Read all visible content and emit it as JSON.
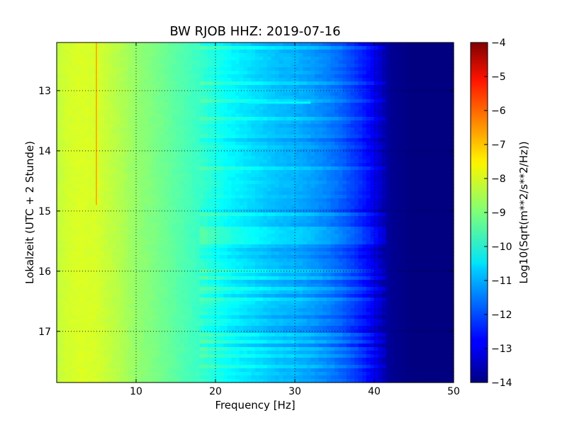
{
  "chart_data": {
    "type": "heatmap",
    "title": "BW RJOB HHZ: 2019-07-16",
    "xlabel": "Frequency [Hz]",
    "ylabel": "Lokalzeit (UTC + 2 Stunde)",
    "xlim": [
      0,
      50
    ],
    "ylim": [
      12.2,
      17.85
    ],
    "y_inverted": true,
    "x_ticks": [
      10,
      20,
      30,
      40,
      50
    ],
    "y_ticks": [
      13,
      14,
      15,
      16,
      17
    ],
    "grid": true,
    "colormap": "jet",
    "colorbar": {
      "label": "Log10(Sqrt(m**2/s**2/Hz))",
      "range": [
        -14,
        -4
      ],
      "ticks": [
        -14,
        -13,
        -12,
        -11,
        -10,
        -9,
        -8,
        -7,
        -6,
        -5,
        -4
      ]
    },
    "spectrum_profile": {
      "frequency_hz": [
        0,
        1,
        3,
        5,
        8,
        10,
        12,
        15,
        18,
        20,
        22,
        25,
        28,
        30,
        32,
        34,
        36,
        38,
        40,
        41,
        42,
        45,
        50
      ],
      "log_amplitude": [
        -8.4,
        -8.2,
        -8.1,
        -8.15,
        -8.5,
        -8.8,
        -9.0,
        -9.35,
        -9.7,
        -10.0,
        -10.3,
        -10.6,
        -10.9,
        -11.0,
        -11.2,
        -11.45,
        -11.8,
        -12.3,
        -12.9,
        -13.4,
        -13.8,
        -14.0,
        -14.0
      ]
    },
    "line_features": [
      {
        "frequency_hz": 5.0,
        "time_start": 12.2,
        "time_end": 14.9,
        "log_amplitude": -7.0
      }
    ],
    "bright_segments": [
      {
        "time": 13.2,
        "freq_from": 24,
        "freq_to": 32,
        "log_amplitude": -10.3
      }
    ]
  }
}
